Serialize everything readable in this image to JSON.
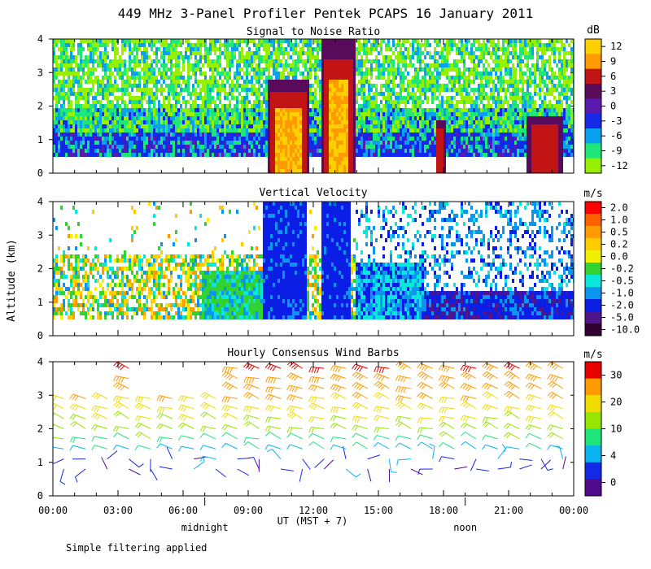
{
  "chart_data": {
    "type": "heatmap",
    "title": "449 MHz 3-Panel Profiler Pentek PCAPS 16 January 2011",
    "ylabel": "Altitude (km)",
    "xlabel": "UT (MST + 7)",
    "footnote": "Simple filtering applied",
    "x_ticks": [
      "00:00",
      "03:00",
      "06:00",
      "09:00",
      "12:00",
      "15:00",
      "18:00",
      "21:00",
      "00:00"
    ],
    "x_range_hours": [
      0,
      24
    ],
    "day_markers": [
      {
        "label": "midnight",
        "hour": 7
      },
      {
        "label": "noon",
        "hour": 19
      }
    ],
    "y_ticks": [
      0,
      1,
      2,
      3,
      4
    ],
    "ylim": [
      0,
      4
    ],
    "panels": [
      {
        "title": "Signal to Noise Ratio",
        "unit": "dB",
        "colorbar_labels": [
          "12",
          "9",
          "6",
          "3",
          "0",
          "-3",
          "-6",
          "-9",
          "-12"
        ],
        "colorbar_colors": [
          "#ffd000",
          "#ff9a00",
          "#c21414",
          "#5a0a5a",
          "#5a1ab0",
          "#1428e8",
          "#0aa0f0",
          "#1ee678",
          "#96f000"
        ],
        "high_snr_intervals": [
          {
            "start_h": 9.8,
            "end_h": 11.8,
            "top_km": 2.8,
            "peak_db": 12
          },
          {
            "start_h": 12.3,
            "end_h": 13.9,
            "top_km": 4.0,
            "peak_db": 12
          },
          {
            "start_h": 17.6,
            "end_h": 18.0,
            "top_km": 1.6,
            "peak_db": 6
          },
          {
            "start_h": 21.8,
            "end_h": 23.4,
            "top_km": 1.7,
            "peak_db": 6
          }
        ]
      },
      {
        "title": "Vertical Velocity",
        "unit": "m/s",
        "colorbar_labels": [
          "2.0",
          "1.0",
          "0.5",
          "0.2",
          "0.0",
          "-0.2",
          "-0.5",
          "-1.0",
          "-2.0",
          "-5.0",
          "-10.0"
        ],
        "colorbar_colors": [
          "#ff0000",
          "#ff6000",
          "#ff9a00",
          "#ffcc00",
          "#f0f000",
          "#32d232",
          "#0ae6dc",
          "#0a96f0",
          "#0a1ee6",
          "#50148c",
          "#320032"
        ],
        "strong_downdraft_intervals": [
          {
            "start_h": 9.6,
            "end_h": 11.6,
            "velocity_ms": -2.0
          },
          {
            "start_h": 12.3,
            "end_h": 13.7,
            "velocity_ms": -2.0
          }
        ]
      },
      {
        "title": "Hourly Consensus Wind Barbs",
        "unit": "m/s",
        "colorbar_labels": [
          "30",
          "20",
          "10",
          "4",
          "0"
        ],
        "colorbar_colors": [
          "#e60000",
          "#ff9a00",
          "#f0dc00",
          "#96e600",
          "#1ee678",
          "#0ab4f0",
          "#1428e8",
          "#500a8c"
        ],
        "barb_hours": [
          0,
          1,
          2,
          3,
          4,
          5,
          6,
          7,
          8,
          9,
          10,
          11,
          12,
          13,
          14,
          15,
          16,
          17,
          18,
          19,
          20,
          21,
          22,
          23
        ],
        "barb_levels_km": [
          0.8,
          1.1,
          1.4,
          1.7,
          2.0,
          2.3,
          2.6,
          2.9,
          3.2,
          3.5,
          3.8
        ],
        "speed_profile": [
          {
            "altitude_km": 0.5,
            "speed_ms": 1
          },
          {
            "altitude_km": 1.0,
            "speed_ms": 3
          },
          {
            "altitude_km": 1.5,
            "speed_ms": 7
          },
          {
            "altitude_km": 2.0,
            "speed_ms": 13
          },
          {
            "altitude_km": 2.5,
            "speed_ms": 19
          },
          {
            "altitude_km": 3.0,
            "speed_ms": 23
          },
          {
            "altitude_km": 3.5,
            "speed_ms": 27
          },
          {
            "altitude_km": 4.0,
            "speed_ms": 31
          }
        ]
      }
    ]
  }
}
